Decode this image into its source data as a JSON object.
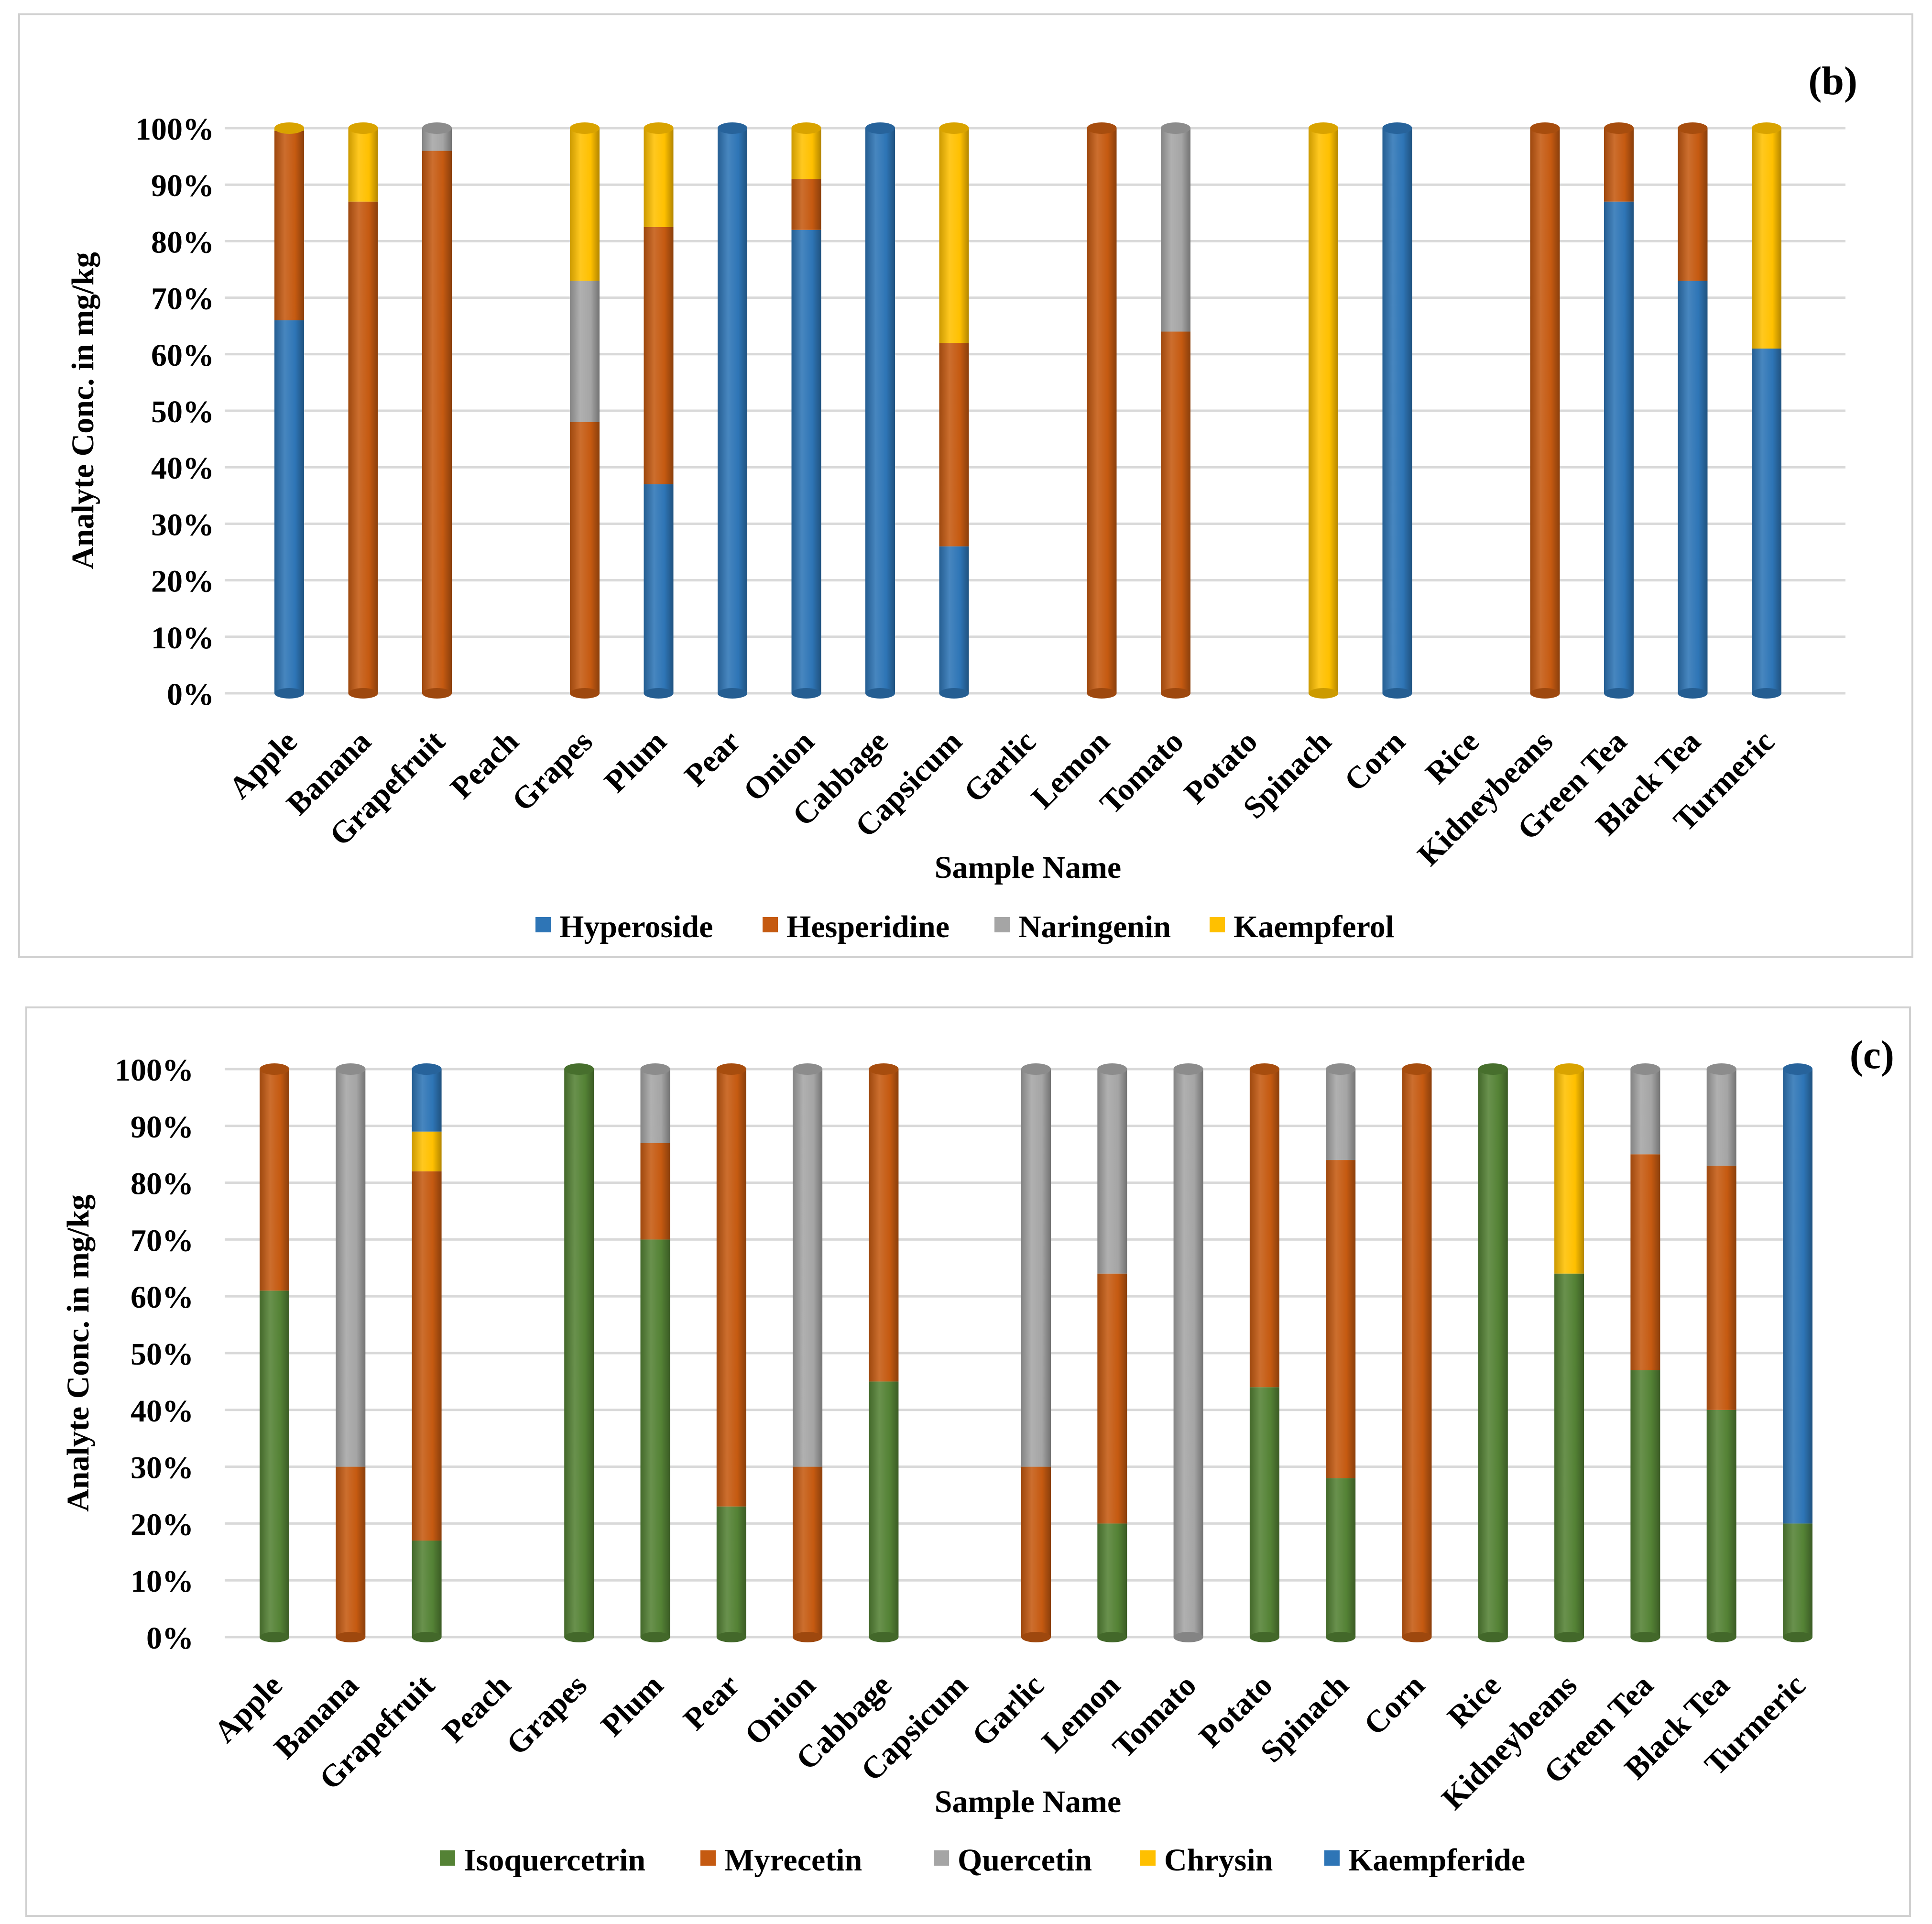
{
  "chart_data": [
    {
      "type": "bar",
      "stacked": "percent",
      "title": "(b)",
      "xlabel": "Sample Name",
      "ylabel": "Analyte Conc. in mg/kg",
      "ylim": [
        0,
        100
      ],
      "y_ticks": [
        "0%",
        "10%",
        "20%",
        "30%",
        "40%",
        "50%",
        "60%",
        "70%",
        "80%",
        "90%",
        "100%"
      ],
      "grid": true,
      "legend_position": "bottom",
      "categories": [
        "Apple",
        "Banana",
        "Grapefruit",
        "Peach",
        "Grapes",
        "Plum",
        "Pear",
        "Onion",
        "Cabbage",
        "Capsicum",
        "Garlic",
        "Lemon",
        "Tomato",
        "Potato",
        "Spinach",
        "Corn",
        "Rice",
        "Kidneybeans",
        "Green Tea",
        "Black Tea",
        "Turmeric"
      ],
      "series": [
        {
          "name": "Hyperoside",
          "color": "#2E75B6",
          "values": [
            66,
            0,
            0,
            0,
            0,
            37,
            100,
            82,
            100,
            26,
            0,
            0,
            0,
            0,
            0,
            100,
            0,
            0,
            87,
            73,
            61
          ]
        },
        {
          "name": "Hesperidine",
          "color": "#C55A11",
          "values": [
            33.5,
            87,
            96,
            0,
            48,
            45.5,
            0,
            9,
            0,
            36,
            0,
            100,
            64,
            0,
            0,
            0,
            0,
            100,
            13,
            27,
            0
          ]
        },
        {
          "name": "Naringenin",
          "color": "#A5A5A5",
          "values": [
            0,
            0,
            4,
            0,
            25,
            0,
            0,
            0,
            0,
            0,
            0,
            0,
            36,
            0,
            0,
            0,
            0,
            0,
            0,
            0,
            0
          ]
        },
        {
          "name": "Kaempferol",
          "color": "#FFC000",
          "values": [
            0.5,
            13,
            0,
            0,
            27,
            17.5,
            0,
            9,
            0,
            38,
            0,
            0,
            0,
            0,
            100,
            0,
            0,
            0,
            0,
            0,
            39
          ]
        }
      ]
    },
    {
      "type": "bar",
      "stacked": "percent",
      "title": "(c)",
      "xlabel": "Sample Name",
      "ylabel": "Analyte Conc. in mg/kg",
      "ylim": [
        0,
        100
      ],
      "y_ticks": [
        "0%",
        "10%",
        "20%",
        "30%",
        "40%",
        "50%",
        "60%",
        "70%",
        "80%",
        "90%",
        "100%"
      ],
      "grid": true,
      "legend_position": "bottom",
      "categories": [
        "Apple",
        "Banana",
        "Grapefruit",
        "Peach",
        "Grapes",
        "Plum",
        "Pear",
        "Onion",
        "Cabbage",
        "Capsicum",
        "Garlic",
        "Lemon",
        "Tomato",
        "Potato",
        "Spinach",
        "Corn",
        "Rice",
        "Kidneybeans",
        "Green Tea",
        "Black Tea",
        "Turmeric"
      ],
      "series": [
        {
          "name": "Isoquercetrin",
          "color": "#548235",
          "values": [
            61,
            0,
            17,
            0,
            100,
            70,
            23,
            0,
            45,
            0,
            0,
            20,
            0,
            44,
            28,
            0,
            100,
            64,
            47,
            40,
            20
          ]
        },
        {
          "name": "Myrecetin",
          "color": "#C55A11",
          "values": [
            39,
            30,
            65,
            0,
            0,
            17,
            77,
            30,
            55,
            0,
            30,
            44,
            0,
            56,
            56,
            100,
            0,
            0,
            38,
            43,
            0
          ]
        },
        {
          "name": "Quercetin",
          "color": "#A5A5A5",
          "values": [
            0,
            70,
            0,
            0,
            0,
            13,
            0,
            70,
            0,
            0,
            70,
            36,
            100,
            0,
            16,
            0,
            0,
            0,
            15,
            17,
            0
          ]
        },
        {
          "name": "Chrysin",
          "color": "#FFC000",
          "values": [
            0,
            0,
            7,
            0,
            0,
            0,
            0,
            0,
            0,
            0,
            0,
            0,
            0,
            0,
            0,
            0,
            0,
            36,
            0,
            0,
            0
          ]
        },
        {
          "name": "Kaempferide",
          "color": "#2E75B6",
          "values": [
            0,
            0,
            11,
            0,
            0,
            0,
            0,
            0,
            0,
            0,
            0,
            0,
            0,
            0,
            0,
            0,
            0,
            0,
            0,
            0,
            80
          ]
        }
      ]
    }
  ]
}
